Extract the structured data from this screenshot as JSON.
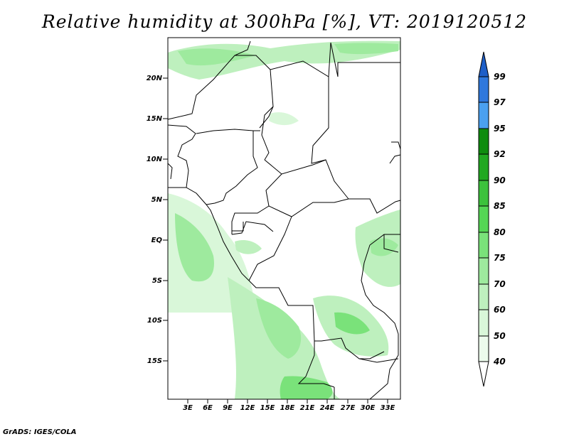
{
  "title": "Relative humidity at 300hPa [%], VT: 2019120512",
  "credit": "GrADS: IGES/COLA",
  "map": {
    "lat_labels": [
      "20N",
      "15N",
      "10N",
      "5N",
      "EQ",
      "5S",
      "10S",
      "15S"
    ],
    "lon_labels": [
      "3E",
      "6E",
      "9E",
      "12E",
      "15E",
      "18E",
      "21E",
      "24E",
      "27E",
      "30E",
      "33E"
    ]
  },
  "colorbar": {
    "levels": [
      "99",
      "97",
      "95",
      "92",
      "90",
      "85",
      "80",
      "75",
      "70",
      "60",
      "50",
      "40"
    ],
    "colors": [
      "#1e5fc8",
      "#2f78dd",
      "#4aa0f0",
      "#0f8c0f",
      "#21a821",
      "#3cc23c",
      "#55d655",
      "#7ae27a",
      "#9eea9e",
      "#bef0be",
      "#d9f7d9",
      "#ecfbec",
      "#ffffff"
    ]
  }
}
